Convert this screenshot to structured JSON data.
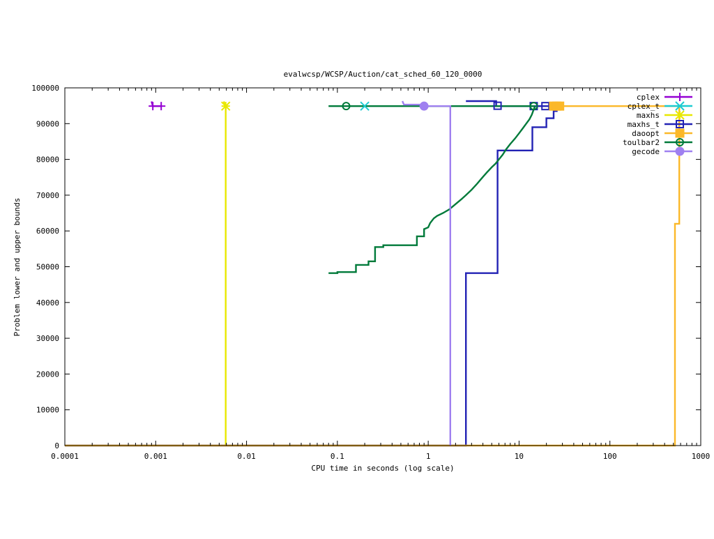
{
  "chart_data": {
    "type": "line",
    "title": "evalwcsp/WCSP/Auction/cat_sched_60_120_0000",
    "xlabel": "CPU time in seconds (log scale)",
    "ylabel": "Problem lower and upper bounds",
    "x_scale": "log",
    "xlim": [
      0.0001,
      1000
    ],
    "ylim": [
      0,
      100000
    ],
    "x_ticks": [
      {
        "value": 0.0001,
        "label": "0.0001"
      },
      {
        "value": 0.001,
        "label": "0.001"
      },
      {
        "value": 0.01,
        "label": "0.01"
      },
      {
        "value": 0.1,
        "label": "0.1"
      },
      {
        "value": 1,
        "label": "1"
      },
      {
        "value": 10,
        "label": "10"
      },
      {
        "value": 100,
        "label": "100"
      },
      {
        "value": 1000,
        "label": "1000"
      }
    ],
    "y_ticks": [
      {
        "value": 0,
        "label": "0"
      },
      {
        "value": 10000,
        "label": "10000"
      },
      {
        "value": 20000,
        "label": "20000"
      },
      {
        "value": 30000,
        "label": "30000"
      },
      {
        "value": 40000,
        "label": "40000"
      },
      {
        "value": 50000,
        "label": "50000"
      },
      {
        "value": 60000,
        "label": "60000"
      },
      {
        "value": 70000,
        "label": "70000"
      },
      {
        "value": 80000,
        "label": "80000"
      },
      {
        "value": 90000,
        "label": "90000"
      },
      {
        "value": 100000,
        "label": "100000"
      }
    ],
    "grid": false,
    "legend_position": "top-right",
    "series": [
      {
        "name": "cplex",
        "color": "#9400d3",
        "marker": "plus",
        "lines": [
          [
            [
              0.0009,
              96200
            ],
            [
              0.00093,
              94900
            ],
            [
              0.00115,
              94900
            ]
          ]
        ],
        "markers": [
          [
            0.00093,
            94900
          ],
          [
            0.00115,
            94900
          ]
        ]
      },
      {
        "name": "cplex_t",
        "color": "#1ccbd1",
        "marker": "cross",
        "lines": [],
        "markers": [
          [
            0.2,
            94900
          ]
        ]
      },
      {
        "name": "maxhs",
        "color": "#e8e800",
        "marker": "star",
        "lines": [
          [
            [
              0.0056,
              96200
            ],
            [
              0.0059,
              94900
            ],
            [
              0.0059,
              0
            ]
          ]
        ],
        "markers": [
          [
            0.0059,
            94900
          ]
        ]
      },
      {
        "name": "maxhs_t",
        "color": "#2222b4",
        "marker": "square",
        "lines": [
          [
            [
              0.0001,
              0
            ],
            [
              2.6,
              0
            ],
            [
              2.6,
              48200
            ],
            [
              5.8,
              48200
            ],
            [
              5.8,
              82500
            ],
            [
              14,
              82500
            ],
            [
              14,
              89000
            ],
            [
              20,
              89000
            ],
            [
              20,
              91500
            ],
            [
              24,
              91500
            ],
            [
              24,
              93500
            ],
            [
              26,
              93500
            ],
            [
              26,
              94900
            ],
            [
              30,
              94900
            ]
          ],
          [
            [
              2.6,
              96300
            ],
            [
              5.6,
              96300
            ],
            [
              5.6,
              94900
            ],
            [
              30,
              94900
            ]
          ]
        ],
        "markers": [
          [
            5.8,
            95000
          ],
          [
            14.5,
            94900
          ],
          [
            19.5,
            94900
          ]
        ]
      },
      {
        "name": "daoopt",
        "color": "#fbb829",
        "marker": "filled-square",
        "lines": [
          [
            [
              0.0001,
              0
            ],
            [
              520,
              0
            ],
            [
              520,
              62000
            ],
            [
              580,
              62000
            ],
            [
              580,
              94900
            ],
            [
              30,
              94900
            ]
          ]
        ],
        "markers": [
          [
            24,
            94900
          ],
          [
            26,
            94900
          ],
          [
            28,
            94900
          ]
        ]
      },
      {
        "name": "toulbar2",
        "color": "#007a3a",
        "marker": "circle",
        "lines": [
          [
            [
              0.08,
              94900
            ],
            [
              15,
              94900
            ]
          ],
          [
            [
              0.08,
              48200
            ],
            [
              0.1,
              48200
            ],
            [
              0.1,
              48500
            ],
            [
              0.16,
              48500
            ],
            [
              0.16,
              50500
            ],
            [
              0.22,
              50500
            ],
            [
              0.22,
              51500
            ],
            [
              0.26,
              51500
            ],
            [
              0.26,
              55500
            ],
            [
              0.32,
              55500
            ],
            [
              0.32,
              56000
            ],
            [
              0.75,
              56000
            ],
            [
              0.75,
              58500
            ],
            [
              0.9,
              58500
            ],
            [
              0.9,
              60500
            ],
            [
              1.0,
              61000
            ],
            [
              1.05,
              62200
            ],
            [
              1.15,
              63500
            ],
            [
              1.25,
              64200
            ],
            [
              1.45,
              65000
            ],
            [
              1.7,
              66000
            ],
            [
              2.0,
              67500
            ],
            [
              2.3,
              68800
            ],
            [
              2.6,
              70000
            ],
            [
              3.0,
              71500
            ],
            [
              3.4,
              73000
            ],
            [
              3.9,
              74800
            ],
            [
              4.4,
              76300
            ],
            [
              5.0,
              77800
            ],
            [
              5.5,
              78800
            ],
            [
              6.0,
              80000
            ],
            [
              6.6,
              81300
            ],
            [
              7.2,
              82800
            ],
            [
              8.0,
              84300
            ],
            [
              9.0,
              85800
            ],
            [
              10.0,
              87300
            ],
            [
              11.0,
              88700
            ],
            [
              12.0,
              90000
            ],
            [
              13.0,
              91200
            ],
            [
              13.8,
              92500
            ],
            [
              14.5,
              94000
            ],
            [
              15,
              94900
            ]
          ]
        ],
        "markers": [
          [
            0.125,
            94900
          ],
          [
            14.5,
            94900
          ]
        ]
      },
      {
        "name": "gecode",
        "color": "#9f80f0",
        "marker": "filled-circle",
        "lines": [
          [
            [
              0.52,
              96300
            ],
            [
              0.54,
              95300
            ],
            [
              0.9,
              95300
            ],
            [
              0.9,
              94900
            ],
            [
              1.75,
              94900
            ],
            [
              1.75,
              0
            ]
          ]
        ],
        "markers": [
          [
            0.9,
            94900
          ]
        ]
      }
    ]
  }
}
